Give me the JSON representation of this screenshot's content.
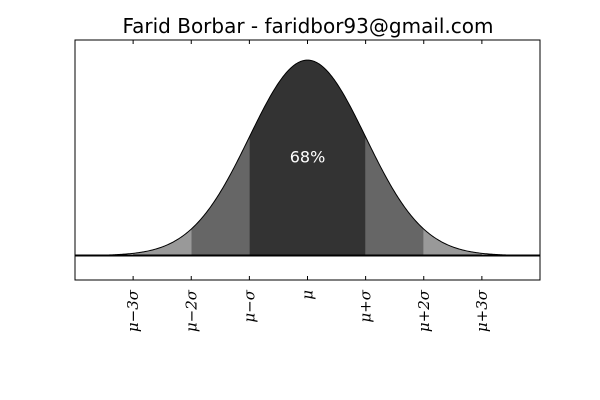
{
  "chart_data": {
    "type": "area",
    "title": "Farid Borbar - faridbor93@gmail.com",
    "xlabel": "",
    "ylabel": "",
    "xlim": [
      -4,
      4
    ],
    "ylim": [
      -0.05,
      0.44
    ],
    "grid": false,
    "legend": "none",
    "curve": {
      "function": "normal-pdf",
      "mean": 0,
      "sd": 1,
      "line_color": "#000000"
    },
    "ticks": [
      {
        "x": -3,
        "label": "μ−3σ"
      },
      {
        "x": -2,
        "label": "μ−2σ"
      },
      {
        "x": -1,
        "label": "μ−σ"
      },
      {
        "x": 0,
        "label": "μ"
      },
      {
        "x": 1,
        "label": "μ+σ"
      },
      {
        "x": 2,
        "label": "μ+2σ"
      },
      {
        "x": 3,
        "label": "μ+3σ"
      }
    ],
    "bands": [
      {
        "from": -3,
        "to": -2,
        "color": "#999999"
      },
      {
        "from": -2,
        "to": -1,
        "color": "#666666"
      },
      {
        "from": -1,
        "to": 1,
        "color": "#333333"
      },
      {
        "from": 1,
        "to": 2,
        "color": "#666666"
      },
      {
        "from": 2,
        "to": 3,
        "color": "#999999"
      }
    ],
    "annotation": {
      "x": 0,
      "y": 0.2,
      "text": "68%",
      "color": "#ffffff"
    },
    "baseline": {
      "y": 0
    }
  }
}
